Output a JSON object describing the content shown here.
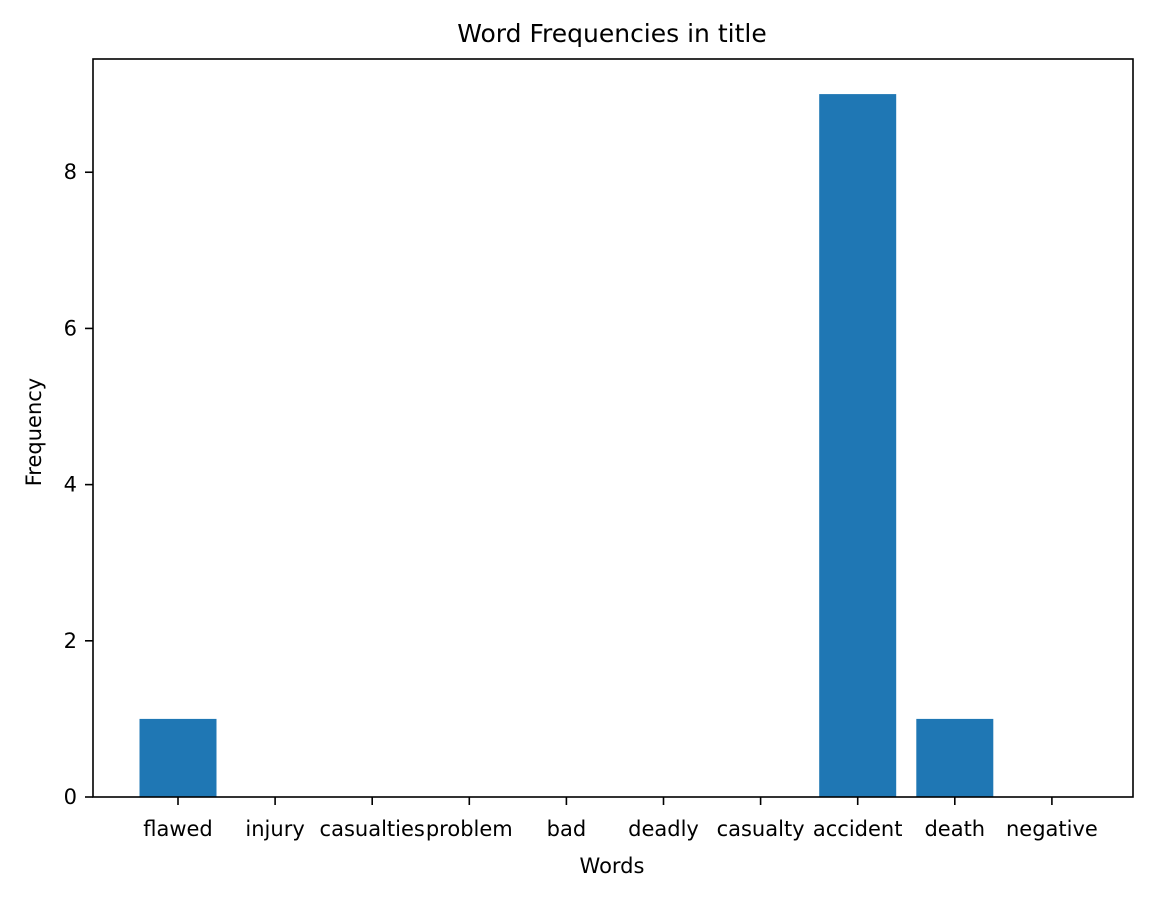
{
  "chart_data": {
    "type": "bar",
    "title": "Word Frequencies in title",
    "xlabel": "Words",
    "ylabel": "Frequency",
    "categories": [
      "flawed",
      "injury",
      "casualties",
      "problem",
      "bad",
      "deadly",
      "casualty",
      "accident",
      "death",
      "negative"
    ],
    "values": [
      1,
      0,
      0,
      0,
      0,
      0,
      0,
      9,
      1,
      0
    ],
    "ylim": [
      0,
      9.45
    ],
    "yticks": [
      0,
      2,
      4,
      6,
      8
    ],
    "grid": false,
    "bar_color": "#1f77b4"
  }
}
